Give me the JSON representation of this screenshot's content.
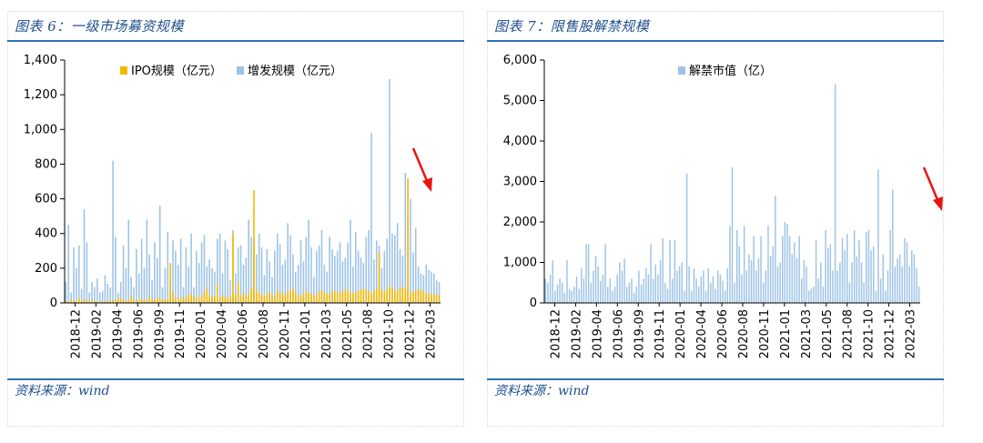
{
  "panels": [
    {
      "title": "图表 6：一级市场募资规模",
      "source": "资料来源：wind",
      "chart_data": {
        "type": "bar",
        "stacked": false,
        "ylim": [
          0,
          1400
        ],
        "yticks": [
          "0",
          "200",
          "400",
          "600",
          "800",
          "1,000",
          "1,200",
          "1,400"
        ],
        "ytick_values": [
          0,
          200,
          400,
          600,
          800,
          1000,
          1200,
          1400
        ],
        "xtick_labels": [
          "2018-12",
          "2019-02",
          "2019-04",
          "2019-06",
          "2019-09",
          "2019-11",
          "2020-01",
          "2020-04",
          "2020-06",
          "2020-08",
          "2020-11",
          "2021-01",
          "2021-03",
          "2021-05",
          "2021-08",
          "2021-10",
          "2021-12",
          "2022-03"
        ],
        "legend": "top-center",
        "series": [
          {
            "name": "IPO规模（亿元）",
            "color": "#f5b800",
            "values": [
              12,
              6,
              18,
              15,
              8,
              30,
              10,
              22,
              18,
              12,
              9,
              14,
              7,
              11,
              6,
              10,
              8,
              16,
              12,
              20,
              30,
              25,
              18,
              12,
              15,
              40,
              22,
              18,
              14,
              26,
              20,
              12,
              35,
              22,
              16,
              30,
              28,
              20,
              18,
              24,
              40,
              60,
              26,
              32,
              22,
              30,
              36,
              45,
              52,
              38,
              30,
              25,
              48,
              60,
              90,
              42,
              40,
              35,
              28,
              30,
              44,
              38,
              26,
              40,
              36,
              50,
              120,
              38,
              60,
              50,
              42,
              80,
              340,
              70,
              58,
              48,
              40,
              55,
              62,
              44,
              38,
              70,
              66,
              52,
              46,
              60,
              72,
              84,
              58,
              48,
              40,
              50,
              68,
              60,
              52,
              48,
              44,
              62,
              76,
              58,
              50,
              54,
              70,
              66,
              60,
              58,
              64,
              80,
              72,
              62,
              56,
              60,
              68,
              74,
              82,
              78,
              66,
              58,
              70,
              82,
              90,
              76,
              64,
              80,
              96,
              88,
              72,
              70,
              84,
              92,
              86,
              62,
              58,
              64,
              72,
              80,
              74,
              66,
              60,
              56,
              48,
              52,
              50,
              44
            ],
            "highlights": {
              "40": 230,
              "58": 110,
              "64": 400,
              "72": 650,
              "85": 70,
              "120": 290,
              "131": 720
            }
          },
          {
            "name": "增发规模（亿元）",
            "color": "#9dc3e6",
            "values": [
              120,
              450,
              60,
              320,
              200,
              330,
              80,
              540,
              350,
              60,
              120,
              90,
              140,
              60,
              70,
              160,
              110,
              90,
              820,
              380,
              60,
              120,
              330,
              200,
              480,
              150,
              90,
              310,
              170,
              370,
              200,
              480,
              280,
              130,
              350,
              260,
              560,
              90,
              200,
              410,
              130,
              360,
              300,
              220,
              370,
              90,
              320,
              210,
              400,
              90,
              300,
              230,
              350,
              390,
              210,
              250,
              200,
              180,
              370,
              400,
              170,
              360,
              310,
              130,
              420,
              170,
              320,
              330,
              220,
              260,
              480,
              380,
              370,
              280,
              400,
              320,
              160,
              310,
              240,
              150,
              300,
              400,
              340,
              220,
              250,
              460,
              390,
              280,
              180,
              220,
              360,
              240,
              380,
              480,
              320,
              150,
              300,
              330,
              420,
              220,
              180,
              380,
              310,
              270,
              300,
              350,
              240,
              260,
              350,
              480,
              210,
              410,
              300,
              260,
              230,
              380,
              420,
              980,
              250,
              360,
              330,
              200,
              300,
              370,
              1290,
              400,
              390,
              460,
              310,
              270,
              750,
              500,
              600,
              290,
              430,
              210,
              170,
              160,
              220,
              190,
              180,
              170,
              130,
              120
            ]
          }
        ]
      }
    },
    {
      "title": "图表 7：限售股解禁规模",
      "source": "资料来源：wind",
      "chart_data": {
        "type": "bar",
        "ylim": [
          0,
          6000
        ],
        "yticks": [
          "0",
          "1,000",
          "2,000",
          "3,000",
          "4,000",
          "5,000",
          "6,000"
        ],
        "ytick_values": [
          0,
          1000,
          2000,
          3000,
          4000,
          5000,
          6000
        ],
        "xtick_labels": [
          "2018-12",
          "2019-02",
          "2019-04",
          "2019-06",
          "2019-09",
          "2019-11",
          "2020-01",
          "2020-04",
          "2020-06",
          "2020-08",
          "2020-11",
          "2021-01",
          "2021-03",
          "2021-05",
          "2021-08",
          "2021-10",
          "2021-12",
          "2022-03"
        ],
        "legend": "top-center",
        "series": [
          {
            "name": "解禁市值（亿）",
            "color": "#9dc3e6",
            "values": [
              600,
              500,
              700,
              1050,
              300,
              450,
              600,
              500,
              250,
              1050,
              350,
              300,
              400,
              650,
              350,
              850,
              600,
              1450,
              1450,
              500,
              800,
              1150,
              900,
              550,
              700,
              1450,
              400,
              600,
              300,
              400,
              700,
              1000,
              800,
              1100,
              400,
              500,
              600,
              250,
              400,
              800,
              450,
              600,
              850,
              700,
              1450,
              600,
              950,
              700,
              1050,
              1600,
              500,
              350,
              1550,
              600,
              1550,
              800,
              900,
              1000,
              300,
              3200,
              900,
              300,
              850,
              600,
              400,
              650,
              800,
              300,
              850,
              500,
              650,
              350,
              800,
              700,
              550,
              300,
              850,
              1900,
              3350,
              500,
              1800,
              1400,
              700,
              1900,
              800,
              1200,
              1050,
              1650,
              800,
              1100,
              1650,
              500,
              800,
              1900,
              1150,
              1400,
              2650,
              900,
              1000,
              1650,
              2000,
              1950,
              1650,
              1200,
              1500,
              1100,
              1650,
              600,
              1050,
              900,
              300,
              350,
              400,
              1550,
              600,
              1000,
              400,
              1800,
              1350,
              1450,
              800,
              5400,
              800,
              1000,
              1600,
              1300,
              1700,
              500,
              1000,
              1800,
              1150,
              1550,
              1000,
              500,
              1750,
              1800,
              1300,
              1400,
              300,
              3300,
              600,
              1200,
              300,
              800,
              1800,
              2800,
              900,
              1100,
              1200,
              900,
              1600,
              1500,
              900,
              1300,
              1200,
              850,
              400
            ]
          }
        ]
      }
    }
  ]
}
